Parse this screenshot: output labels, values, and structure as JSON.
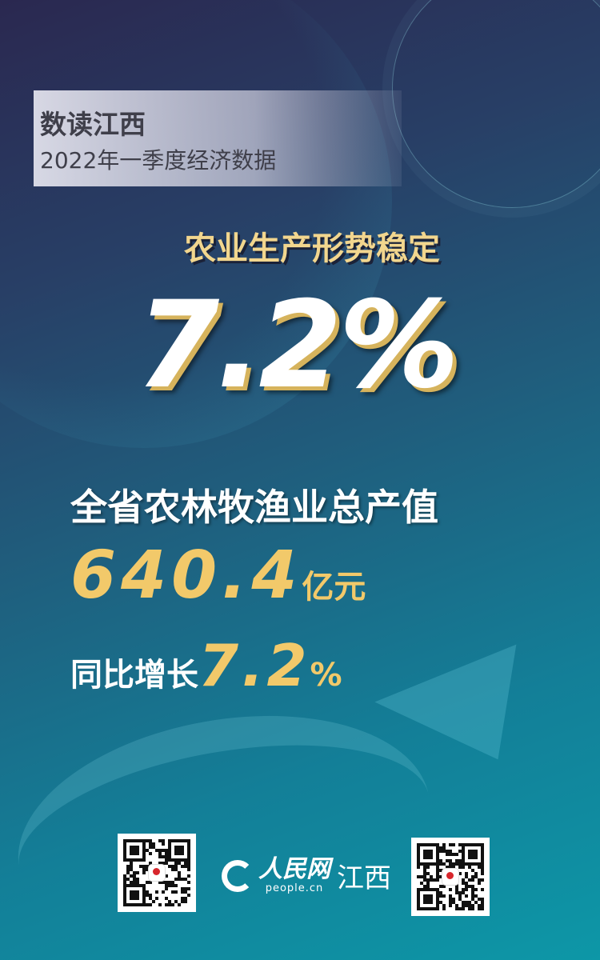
{
  "header": {
    "title": "数读江西",
    "subtitle": "2022年一季度经济数据"
  },
  "headline": "农业生产形势稳定",
  "big_figure": "7.2%",
  "stat": {
    "label": "全省农林牧渔业总产值",
    "value": "640.4",
    "unit": "亿元"
  },
  "growth": {
    "label": "同比增长",
    "value": "7.2",
    "unit": "%"
  },
  "footer": {
    "logo_cn": "人民网",
    "logo_en": "people.cn",
    "region": "江西"
  },
  "colors": {
    "gold": "#f2c96a",
    "bg_top": "#2a2850",
    "bg_bottom": "#0d97a7"
  }
}
